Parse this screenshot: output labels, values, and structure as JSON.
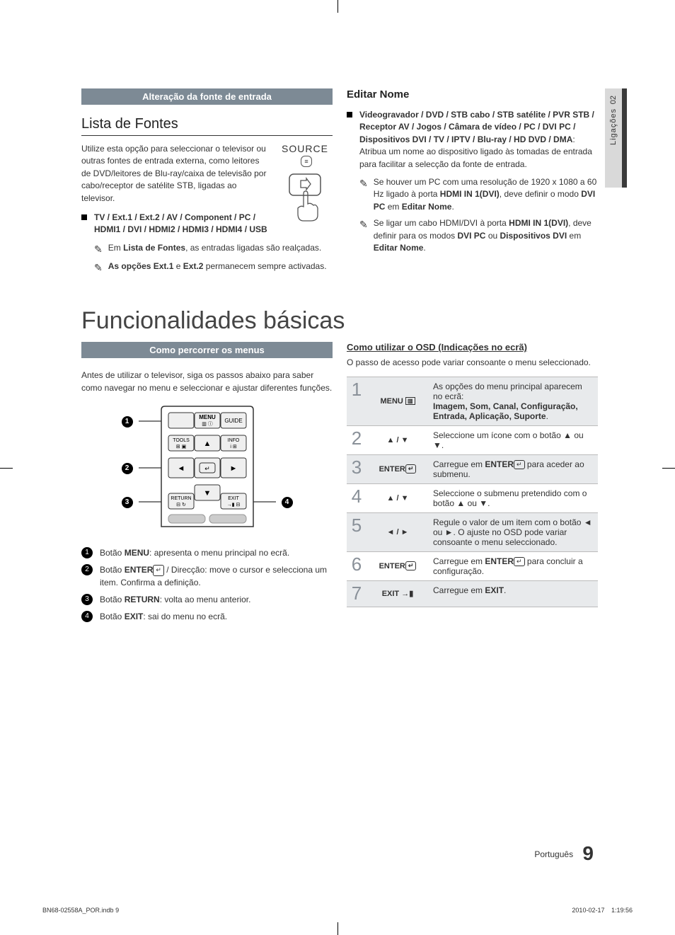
{
  "side_tab": {
    "num": "02",
    "label": "Ligações"
  },
  "left_col": {
    "bar": "Alteração da fonte de entrada",
    "h2": "Lista de Fontes",
    "intro": "Utilize esta opção para seleccionar o televisor ou outras fontes de entrada externa, como leitores de DVD/leitores de Blu-ray/caixa de televisão por cabo/receptor de satélite STB, ligadas ao televisor.",
    "source_label": "SOURCE",
    "bullet_bold": "TV / Ext.1 / Ext.2 / AV / Component / PC / HDMI1 / DVI / HDMI2 / HDMI3 / HDMI4 / USB",
    "note1a": "Em ",
    "note1b": "Lista de Fontes",
    "note1c": ", as entradas ligadas são realçadas.",
    "note2a": "As opções Ext.1",
    "note2b": " e ",
    "note2c": "Ext.2",
    "note2d": " permanecem sempre activadas."
  },
  "right_col": {
    "h3": "Editar Nome",
    "bullet_pre": "Videogravador / DVD / STB cabo / STB satélite / PVR STB / Receptor AV / Jogos / Câmara de vídeo / PC / DVI PC / Dispositivos DVI / TV / IPTV / Blu-ray / HD DVD / DMA",
    "bullet_post": ": Atribua um nome ao dispositivo ligado às tomadas de entrada para facilitar a selecção da fonte de entrada.",
    "note1": "Se houver um PC com uma resolução de 1920 x 1080 a 60 Hz ligado à porta HDMI IN 1(DVI), deve definir o modo DVI PC em Editar Nome.",
    "note1_bold_terms": [
      "HDMI IN 1(DVI)",
      "DVI PC",
      "Editar Nome"
    ],
    "note2": "Se ligar um cabo HDMI/DVI à porta HDMI IN 1(DVI), deve definir para os modos DVI PC ou Dispositivos DVI em Editar Nome.",
    "note2_bold_terms": [
      "HDMI IN 1(DVI)",
      "DVI PC",
      "Dispositivos DVI",
      "Editar Nome"
    ]
  },
  "main_heading": "Funcionalidades básicas",
  "nav_left": {
    "bar": "Como percorrer os menus",
    "intro": "Antes de utilizar o televisor, siga os passos abaixo para saber como navegar no menu e seleccionar e ajustar diferentes funções.",
    "remote_labels": {
      "menu": "MENU",
      "guide": "GUIDE",
      "tools": "TOOLS",
      "info": "INFO",
      "return": "RETURN",
      "exit": "EXIT"
    },
    "legend": [
      {
        "n": "1",
        "pre": "Botão ",
        "b": "MENU",
        "post": ": apresenta o menu principal no ecrã."
      },
      {
        "n": "2",
        "pre": "Botão ",
        "b": "ENTER",
        "post": " / Direcção: move o cursor e selecciona um item. Confirma a definição.",
        "enter_icon": true
      },
      {
        "n": "3",
        "pre": "Botão ",
        "b": "RETURN",
        "post": ": volta ao menu anterior."
      },
      {
        "n": "4",
        "pre": "Botão ",
        "b": "EXIT",
        "post": ": sai do menu no ecrã."
      }
    ]
  },
  "nav_right": {
    "heading": "Como utilizar o OSD (Indicações no ecrã)",
    "intro": "O passo de acesso pode variar consoante o menu seleccionado.",
    "rows": [
      {
        "n": "1",
        "key": "MENU",
        "key_icon": "menu",
        "desc": "As opções do menu principal aparecem no ecrã:",
        "bold": "Imagem, Som, Canal, Configuração, Entrada, Aplicação, Suporte",
        "shade": true
      },
      {
        "n": "2",
        "key": "▲ / ▼",
        "desc": "Seleccione um ícone com o botão ▲ ou ▼."
      },
      {
        "n": "3",
        "key": "ENTER",
        "key_icon": "enter",
        "desc": "Carregue em ENTER para aceder ao submenu.",
        "shade": true,
        "inline_enter": true
      },
      {
        "n": "4",
        "key": "▲ / ▼",
        "desc": "Seleccione o submenu pretendido com o botão ▲ ou ▼."
      },
      {
        "n": "5",
        "key": "◄ / ►",
        "desc": "Regule o valor de um item com o botão ◄ ou ►. O ajuste no OSD pode variar consoante o menu seleccionado.",
        "shade": true
      },
      {
        "n": "6",
        "key": "ENTER",
        "key_icon": "enter",
        "desc": "Carregue em ENTER para concluir a configuração.",
        "inline_enter": true
      },
      {
        "n": "7",
        "key": "EXIT →",
        "key_icon": "exit",
        "desc": "Carregue em EXIT.",
        "shade": true,
        "inline_bold": "EXIT"
      }
    ]
  },
  "footer": {
    "lang": "Português",
    "page": "9"
  },
  "printline": {
    "left": "BN68-02558A_POR.indb   9",
    "right": "2010-02-17     1:19:56"
  },
  "colors": {
    "header_bar": "#7d8a95",
    "shade_row": "#e8eaec",
    "step_num": "#8a9199",
    "side_tab": "#d9d9d9"
  }
}
